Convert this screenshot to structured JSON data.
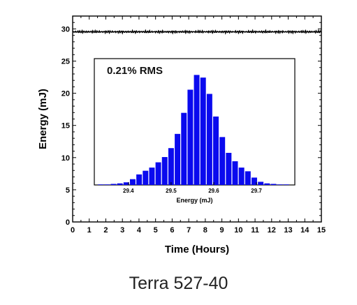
{
  "chart_data": [
    {
      "type": "line",
      "xlabel": "Time (Hours)",
      "ylabel": "Energy (mJ)",
      "xlim": [
        0,
        15
      ],
      "ylim": [
        0,
        32
      ],
      "xticks": [
        0,
        1,
        2,
        3,
        4,
        5,
        6,
        7,
        8,
        9,
        10,
        11,
        12,
        13,
        14,
        15
      ],
      "yticks": [
        0,
        5,
        10,
        15,
        20,
        25,
        30
      ],
      "grid": false,
      "series": [
        {
          "x": [
            0,
            15
          ],
          "values": [
            29.55,
            29.55
          ],
          "color": "#000000"
        }
      ]
    },
    {
      "type": "bar",
      "annotation": "0.21% RMS",
      "xlabel": "Energy (mJ)",
      "ylabel": "",
      "xlim": [
        29.32,
        29.79
      ],
      "ylim": [
        0,
        24
      ],
      "xticks": [
        29.4,
        29.5,
        29.6,
        29.7
      ],
      "bar_color": "#0a0aee",
      "categories": [
        29.335,
        29.35,
        29.365,
        29.38,
        29.395,
        29.41,
        29.425,
        29.44,
        29.455,
        29.47,
        29.485,
        29.5,
        29.515,
        29.53,
        29.545,
        29.56,
        29.575,
        29.59,
        29.605,
        29.62,
        29.635,
        29.65,
        29.665,
        29.68,
        29.695,
        29.71,
        29.725,
        29.74,
        29.755,
        29.77
      ],
      "values": [
        0.1,
        0.1,
        0.2,
        0.3,
        0.5,
        1.1,
        2.0,
        2.7,
        3.3,
        4.3,
        5.3,
        7.0,
        9.7,
        13.7,
        18.1,
        20.9,
        20.4,
        17.3,
        13.0,
        9.1,
        6.1,
        4.5,
        3.3,
        2.6,
        1.4,
        0.6,
        0.3,
        0.2,
        0.1,
        0.1
      ]
    }
  ],
  "caption": "Terra 527-40"
}
